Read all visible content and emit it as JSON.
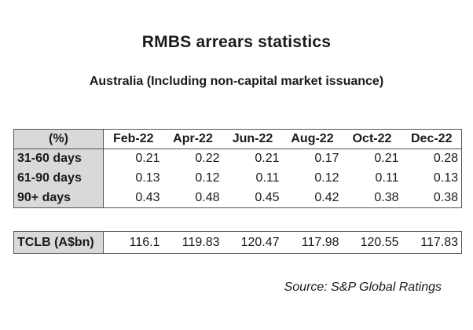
{
  "title": "RMBS arrears statistics",
  "subtitle": "Australia (Including  non-capital market issuance)",
  "arrears_table": {
    "header_label": "(%)",
    "columns": [
      "Feb-22",
      "Apr-22",
      "Jun-22",
      "Aug-22",
      "Oct-22",
      "Dec-22"
    ],
    "rows": [
      {
        "label": "31-60 days",
        "values": [
          "0.21",
          "0.22",
          "0.21",
          "0.17",
          "0.21",
          "0.28"
        ]
      },
      {
        "label": "61-90 days",
        "values": [
          "0.13",
          "0.12",
          "0.11",
          "0.12",
          "0.11",
          "0.13"
        ]
      },
      {
        "label": "90+ days",
        "values": [
          "0.43",
          "0.48",
          "0.45",
          "0.42",
          "0.38",
          "0.38"
        ]
      }
    ]
  },
  "tclb_table": {
    "label": "TCLB (A$bn)",
    "values": [
      "116.1",
      "119.83",
      "120.47",
      "117.98",
      "120.55",
      "117.83"
    ]
  },
  "source": "Source: S&P Global Ratings"
}
